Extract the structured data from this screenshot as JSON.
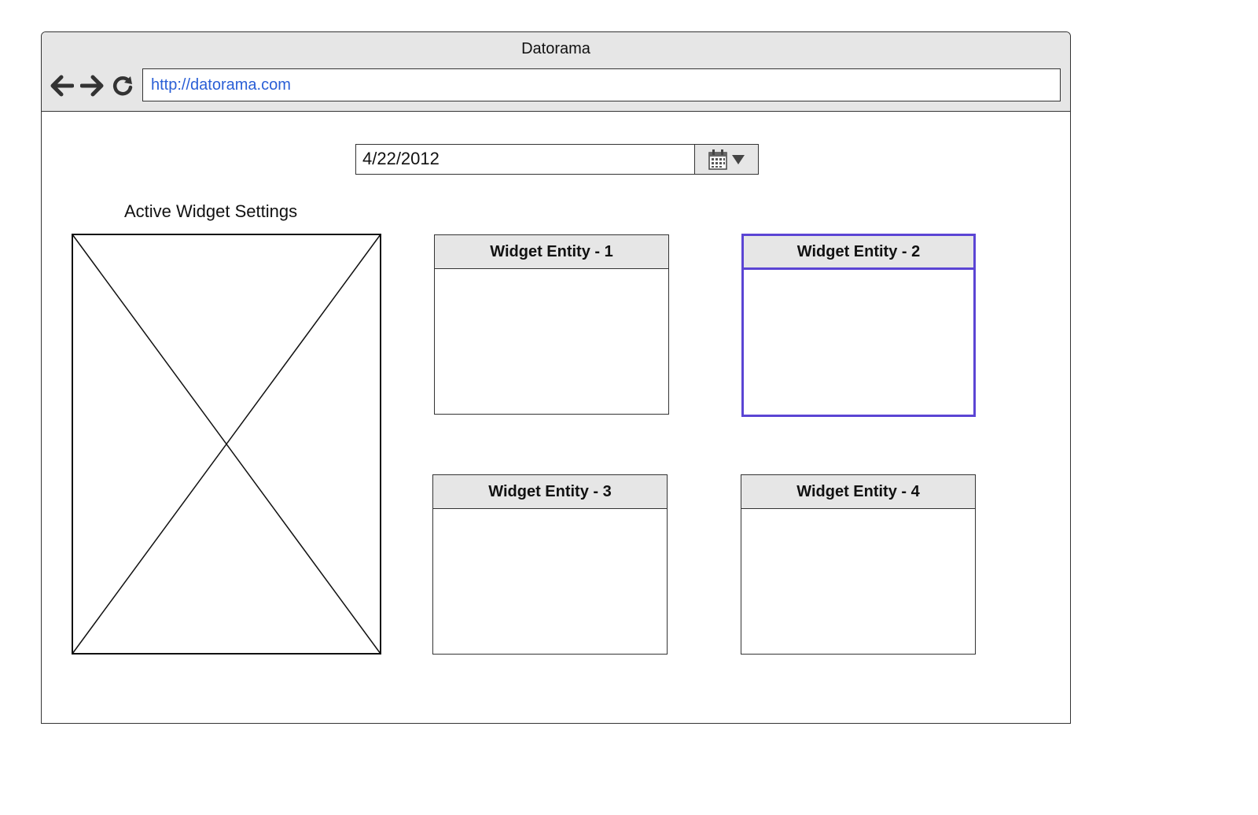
{
  "window": {
    "title": "Datorama"
  },
  "nav": {
    "back_icon": "arrow-left-icon",
    "forward_icon": "arrow-right-icon",
    "reload_icon": "reload-icon",
    "url": "http://datorama.com"
  },
  "date_picker": {
    "value": "4/22/2012",
    "icon": "calendar-icon"
  },
  "settings": {
    "label": "Active Widget Settings",
    "placeholder_icon": "image-placeholder-icon"
  },
  "widgets": [
    {
      "title": "Widget Entity - 1",
      "selected": false
    },
    {
      "title": "Widget Entity - 2",
      "selected": true
    },
    {
      "title": "Widget Entity - 3",
      "selected": false
    },
    {
      "title": "Widget Entity - 4",
      "selected": false
    }
  ],
  "colors": {
    "selection": "#5b45d4",
    "chrome": "#e6e6e6",
    "url_text": "#2a5fd6"
  }
}
